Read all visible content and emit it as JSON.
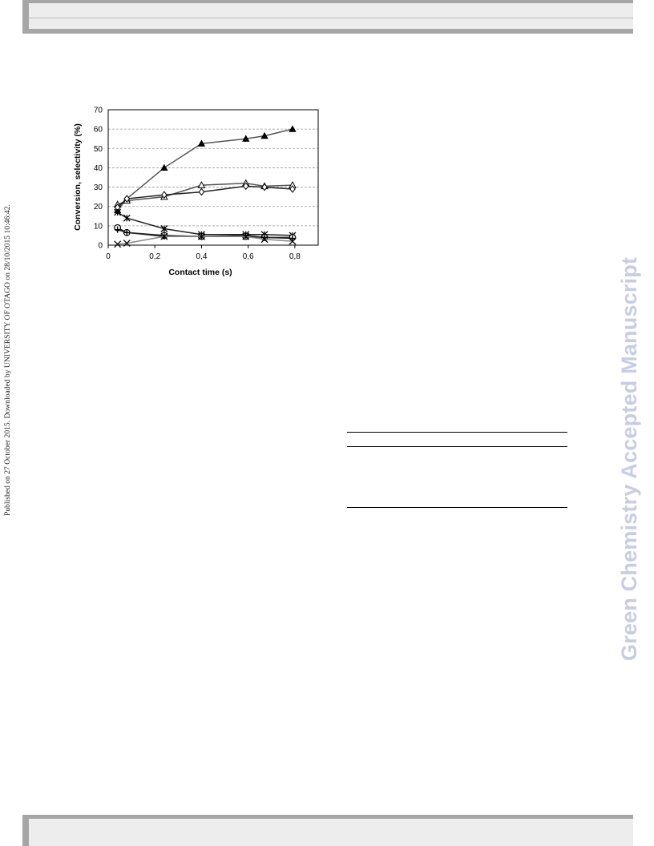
{
  "page": {
    "side_note": "Published on 27 October 2015. Downloaded by UNIVERSITY OF OTAGO on 28/10/2015 10:46:42.",
    "watermark": "Green Chemistry Accepted Manuscript"
  },
  "chart_data": {
    "type": "line",
    "title": "",
    "xlabel": "Contact time (s)",
    "ylabel": "Conversion, selectivity (%)",
    "xlim": [
      0,
      0.9
    ],
    "ylim": [
      0,
      70
    ],
    "xticks": [
      0,
      0.2,
      0.4,
      0.6,
      0.8
    ],
    "xtick_labels": [
      "0",
      "0,2",
      "0,4",
      "0,6",
      "0,8"
    ],
    "yticks": [
      0,
      10,
      20,
      30,
      40,
      50,
      60,
      70
    ],
    "ytick_labels": [
      "0",
      "10",
      "20",
      "30",
      "40",
      "50",
      "60",
      "70"
    ],
    "grid": "horizontal dashed",
    "legend": "none",
    "series": [
      {
        "marker": "filled-triangle",
        "color": "#555555",
        "x": [
          0.04,
          0.08,
          0.24,
          0.4,
          0.59,
          0.67,
          0.79
        ],
        "y": [
          18,
          24,
          40,
          52.5,
          55,
          56.5,
          60
        ]
      },
      {
        "marker": "open-triangle",
        "color": "#555555",
        "x": [
          0.04,
          0.08,
          0.24,
          0.4,
          0.59,
          0.67,
          0.79
        ],
        "y": [
          21,
          23,
          25,
          31,
          32,
          30.5,
          31
        ]
      },
      {
        "marker": "open-diamond",
        "color": "#222222",
        "x": [
          0.04,
          0.08,
          0.24,
          0.4,
          0.59,
          0.67,
          0.79
        ],
        "y": [
          19.5,
          24,
          26,
          27.5,
          30.5,
          30,
          29
        ]
      },
      {
        "marker": "asterisk",
        "color": "#222222",
        "x": [
          0.04,
          0.08,
          0.24,
          0.4,
          0.59,
          0.67,
          0.79
        ],
        "y": [
          17,
          14,
          8.5,
          5.5,
          5.5,
          5.5,
          5
        ]
      },
      {
        "marker": "open-circle",
        "color": "#222222",
        "x": [
          0.04,
          0.08,
          0.24,
          0.4,
          0.59,
          0.67,
          0.79
        ],
        "y": [
          9,
          6.5,
          5,
          4.5,
          4.5,
          4,
          4
        ]
      },
      {
        "marker": "plus",
        "color": "#222222",
        "x": [
          0.04,
          0.08,
          0.24,
          0.4,
          0.59,
          0.67,
          0.79
        ],
        "y": [
          8,
          6.5,
          4.5,
          4.5,
          5,
          4,
          3.5
        ]
      },
      {
        "marker": "x",
        "color": "#888888",
        "x": [
          0.04,
          0.08,
          0.24,
          0.4,
          0.59,
          0.67,
          0.79
        ],
        "y": [
          0.5,
          1,
          4.5,
          4.5,
          4.5,
          3,
          2
        ]
      }
    ]
  }
}
